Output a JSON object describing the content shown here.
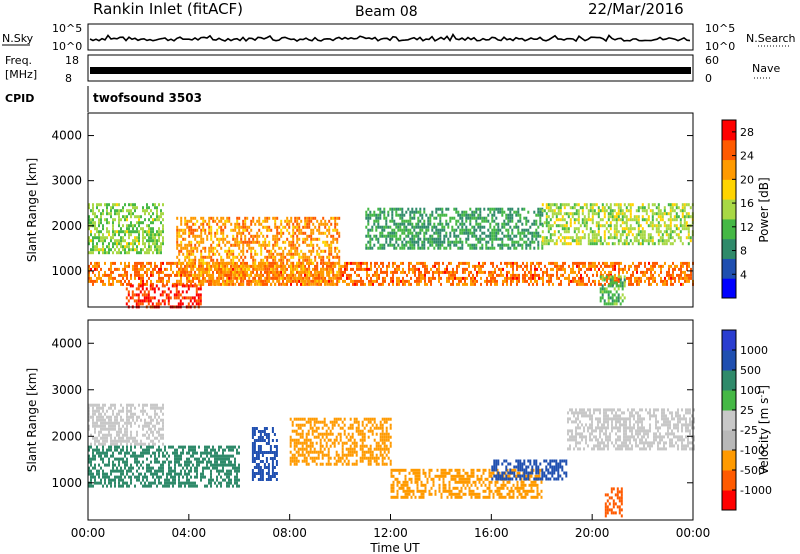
{
  "header": {
    "station": "Rankin Inlet (fitACF)",
    "beam": "Beam 08",
    "date": "22/Mar/2016"
  },
  "top_panels": {
    "nsky_label": "N.Sky",
    "nsearch_label": "N.Search",
    "nsky_ticks": [
      "10^5",
      "10^0"
    ],
    "freq_label_line1": "Freq.",
    "freq_label_line2": "[MHz]",
    "freq_ticks": [
      "18",
      "8"
    ],
    "nave_label": "Nave",
    "nave_ticks": [
      "60",
      "0"
    ],
    "cpid_label": "CPID",
    "cpid_value": "twofsound 3503"
  },
  "colors": {
    "power_scale": [
      "#0000ff",
      "#1f4fb0",
      "#2f8a6a",
      "#45b845",
      "#a8d845",
      "#ffd400",
      "#ff9a00",
      "#ff5a00",
      "#ff0000"
    ],
    "velocity_scale": [
      "#ff0000",
      "#ff5a00",
      "#ff9a00",
      "#b8b8b8",
      "#c8c8c8",
      "#45b845",
      "#2f8a6a",
      "#1f4fb0",
      "#2a3dd0"
    ]
  },
  "chart_data": [
    {
      "type": "heatmap",
      "ylabel": "Slant Range [km]",
      "x_range_hours": [
        0,
        24
      ],
      "ylim": [
        200,
        4500
      ],
      "yticks": [
        1000,
        2000,
        3000,
        4000
      ],
      "colorbar_label": "Power [dB]",
      "colorbar_ticks": [
        28,
        24,
        20,
        16,
        12,
        8,
        4
      ],
      "clim": [
        0,
        30
      ],
      "bands": [
        {
          "t0": 0,
          "t1": 24,
          "r0": 680,
          "r1": 1200,
          "value": 24
        },
        {
          "t0": 0,
          "t1": 3,
          "r0": 1400,
          "r1": 2500,
          "value": 14
        },
        {
          "t0": 3.5,
          "t1": 10,
          "r0": 700,
          "r1": 2200,
          "value": 22
        },
        {
          "t0": 11,
          "t1": 18,
          "r0": 1500,
          "r1": 2400,
          "value": 10
        },
        {
          "t0": 18,
          "t1": 24,
          "r0": 1600,
          "r1": 2500,
          "value": 15
        },
        {
          "t0": 1.5,
          "t1": 4.5,
          "r0": 200,
          "r1": 700,
          "value": 27
        },
        {
          "t0": 20.3,
          "t1": 21.3,
          "r0": 300,
          "r1": 900,
          "value": 12
        }
      ]
    },
    {
      "type": "heatmap",
      "xlabel": "Time UT",
      "ylabel": "Slant Range [km]",
      "x_range_hours": [
        0,
        24
      ],
      "xticks": [
        "00:00",
        "04:00",
        "08:00",
        "12:00",
        "16:00",
        "20:00",
        "00:00"
      ],
      "ylim": [
        200,
        4500
      ],
      "yticks": [
        1000,
        2000,
        3000,
        4000
      ],
      "colorbar_label": "Velocity [m s^-1]",
      "colorbar_ticks": [
        1000,
        500,
        100,
        25,
        -25,
        -100,
        -500,
        -1000
      ],
      "clim": [
        -1200,
        1200
      ],
      "bands": [
        {
          "t0": 0,
          "t1": 3,
          "r0": 1800,
          "r1": 2700,
          "value": 10
        },
        {
          "t0": 0,
          "t1": 6,
          "r0": 900,
          "r1": 1800,
          "value": 200
        },
        {
          "t0": 6.5,
          "t1": 7.5,
          "r0": 1100,
          "r1": 2200,
          "value": 900
        },
        {
          "t0": 8,
          "t1": 12,
          "r0": 1400,
          "r1": 2400,
          "value": -300
        },
        {
          "t0": 12,
          "t1": 18,
          "r0": 700,
          "r1": 1300,
          "value": -200
        },
        {
          "t0": 16,
          "t1": 19,
          "r0": 1100,
          "r1": 1500,
          "value": 600
        },
        {
          "t0": 19,
          "t1": 24,
          "r0": 1700,
          "r1": 2600,
          "value": 0
        },
        {
          "t0": 20.5,
          "t1": 21.2,
          "r0": 300,
          "r1": 900,
          "value": -800
        }
      ]
    }
  ]
}
